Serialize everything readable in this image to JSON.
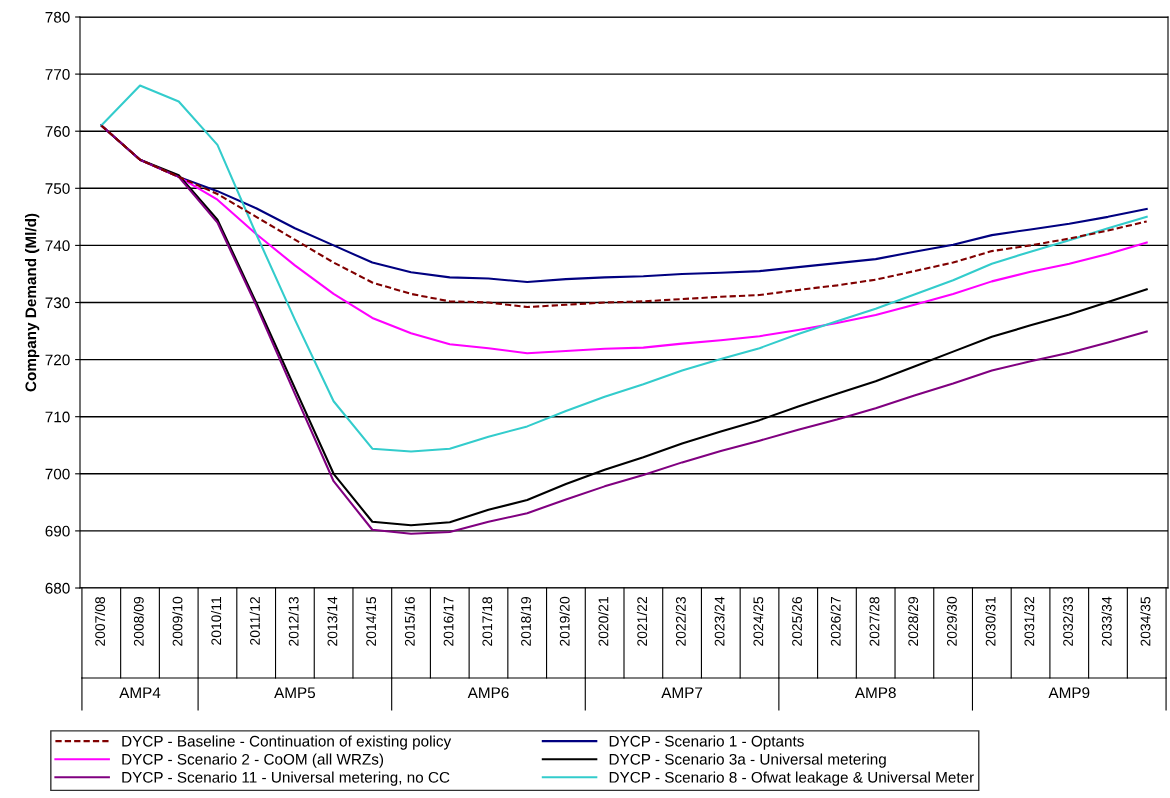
{
  "chart_data": {
    "type": "line",
    "ylabel": "Company Demand (Ml/d)",
    "categories": [
      "2007/08",
      "2008/09",
      "2009/10",
      "2010/11",
      "2011/12",
      "2012/13",
      "2013/14",
      "2014/15",
      "2015/16",
      "2016/17",
      "2017/18",
      "2018/19",
      "2019/20",
      "2020/21",
      "2021/22",
      "2022/23",
      "2023/24",
      "2024/25",
      "2025/26",
      "2026/27",
      "2027/28",
      "2028/29",
      "2029/30",
      "2030/31",
      "2031/32",
      "2032/33",
      "2033/34",
      "2034/35"
    ],
    "series": [
      {
        "name": "DYCP - Baseline - Continuation of existing policy",
        "color": "#800000",
        "line_style": "dashed",
        "values": [
          761,
          755,
          752,
          749,
          745,
          741,
          737,
          733.5,
          731.5,
          730.2,
          730,
          729.2,
          729.6,
          730,
          730.2,
          730.6,
          731,
          731.3,
          732.2,
          733,
          734,
          735.5,
          737,
          739,
          740,
          741.2,
          742.6,
          744.2
        ]
      },
      {
        "name": "DYCP - Scenario 1 - Optants",
        "color": "#000080",
        "values": [
          761,
          755,
          752,
          749.5,
          746.5,
          743,
          740,
          737,
          735.3,
          734.4,
          734.2,
          733.6,
          734.1,
          734.4,
          734.6,
          735,
          735.2,
          735.5,
          736.2,
          736.9,
          737.6,
          738.9,
          740.1,
          741.8,
          742.8,
          743.8,
          745,
          746.4
        ]
      },
      {
        "name": "DYCP - Scenario 2 - CoOM (all WRZs)",
        "color": "#ff00ff",
        "values": [
          761,
          755,
          752,
          748,
          742,
          736.5,
          731.5,
          727.3,
          724.6,
          722.7,
          722,
          721.1,
          721.5,
          721.9,
          722.1,
          722.8,
          723.4,
          724.1,
          725.2,
          726.4,
          727.8,
          729.6,
          731.5,
          733.7,
          735.4,
          736.8,
          738.5,
          740.5
        ]
      },
      {
        "name": "DYCP - Scenario 3a - Universal metering",
        "color": "#000000",
        "values": [
          761,
          755,
          752.3,
          744.5,
          730,
          715,
          700,
          691.6,
          691,
          691.5,
          693.7,
          695.4,
          698.2,
          700.7,
          702.9,
          705.3,
          707.4,
          709.4,
          711.8,
          714,
          716.2,
          718.8,
          721.4,
          724,
          726,
          727.9,
          730.1,
          732.3
        ]
      },
      {
        "name": "DYCP - Scenario 11 - Universal metering, no CC",
        "color": "#800080",
        "values": [
          761,
          755,
          752,
          744,
          729.5,
          714,
          698.7,
          690.2,
          689.5,
          689.8,
          691.6,
          693.1,
          695.5,
          697.8,
          699.8,
          702,
          704,
          705.8,
          707.7,
          709.5,
          711.5,
          713.7,
          715.8,
          718.1,
          719.7,
          721.2,
          723,
          724.9
        ]
      },
      {
        "name": "DYCP - Scenario 8 - Ofwat leakage & Universal Meter",
        "color": "#33cccc",
        "values": [
          761,
          768,
          765.2,
          757.6,
          742,
          727,
          712.7,
          704.4,
          703.9,
          704.4,
          706.5,
          708.3,
          711,
          713.5,
          715.7,
          718.1,
          720.1,
          722,
          724.5,
          726.7,
          728.9,
          731.4,
          733.9,
          736.8,
          738.9,
          740.9,
          743,
          745
        ]
      }
    ],
    "annotations": [
      "AMP4",
      "AMP5",
      "AMP6",
      "AMP7",
      "AMP8",
      "AMP9"
    ],
    "ylim": [
      680,
      780
    ],
    "yticks": [
      680,
      690,
      700,
      710,
      720,
      730,
      740,
      750,
      760,
      770,
      780
    ],
    "grid": "y",
    "legend": "bottom",
    "marker": "none"
  }
}
